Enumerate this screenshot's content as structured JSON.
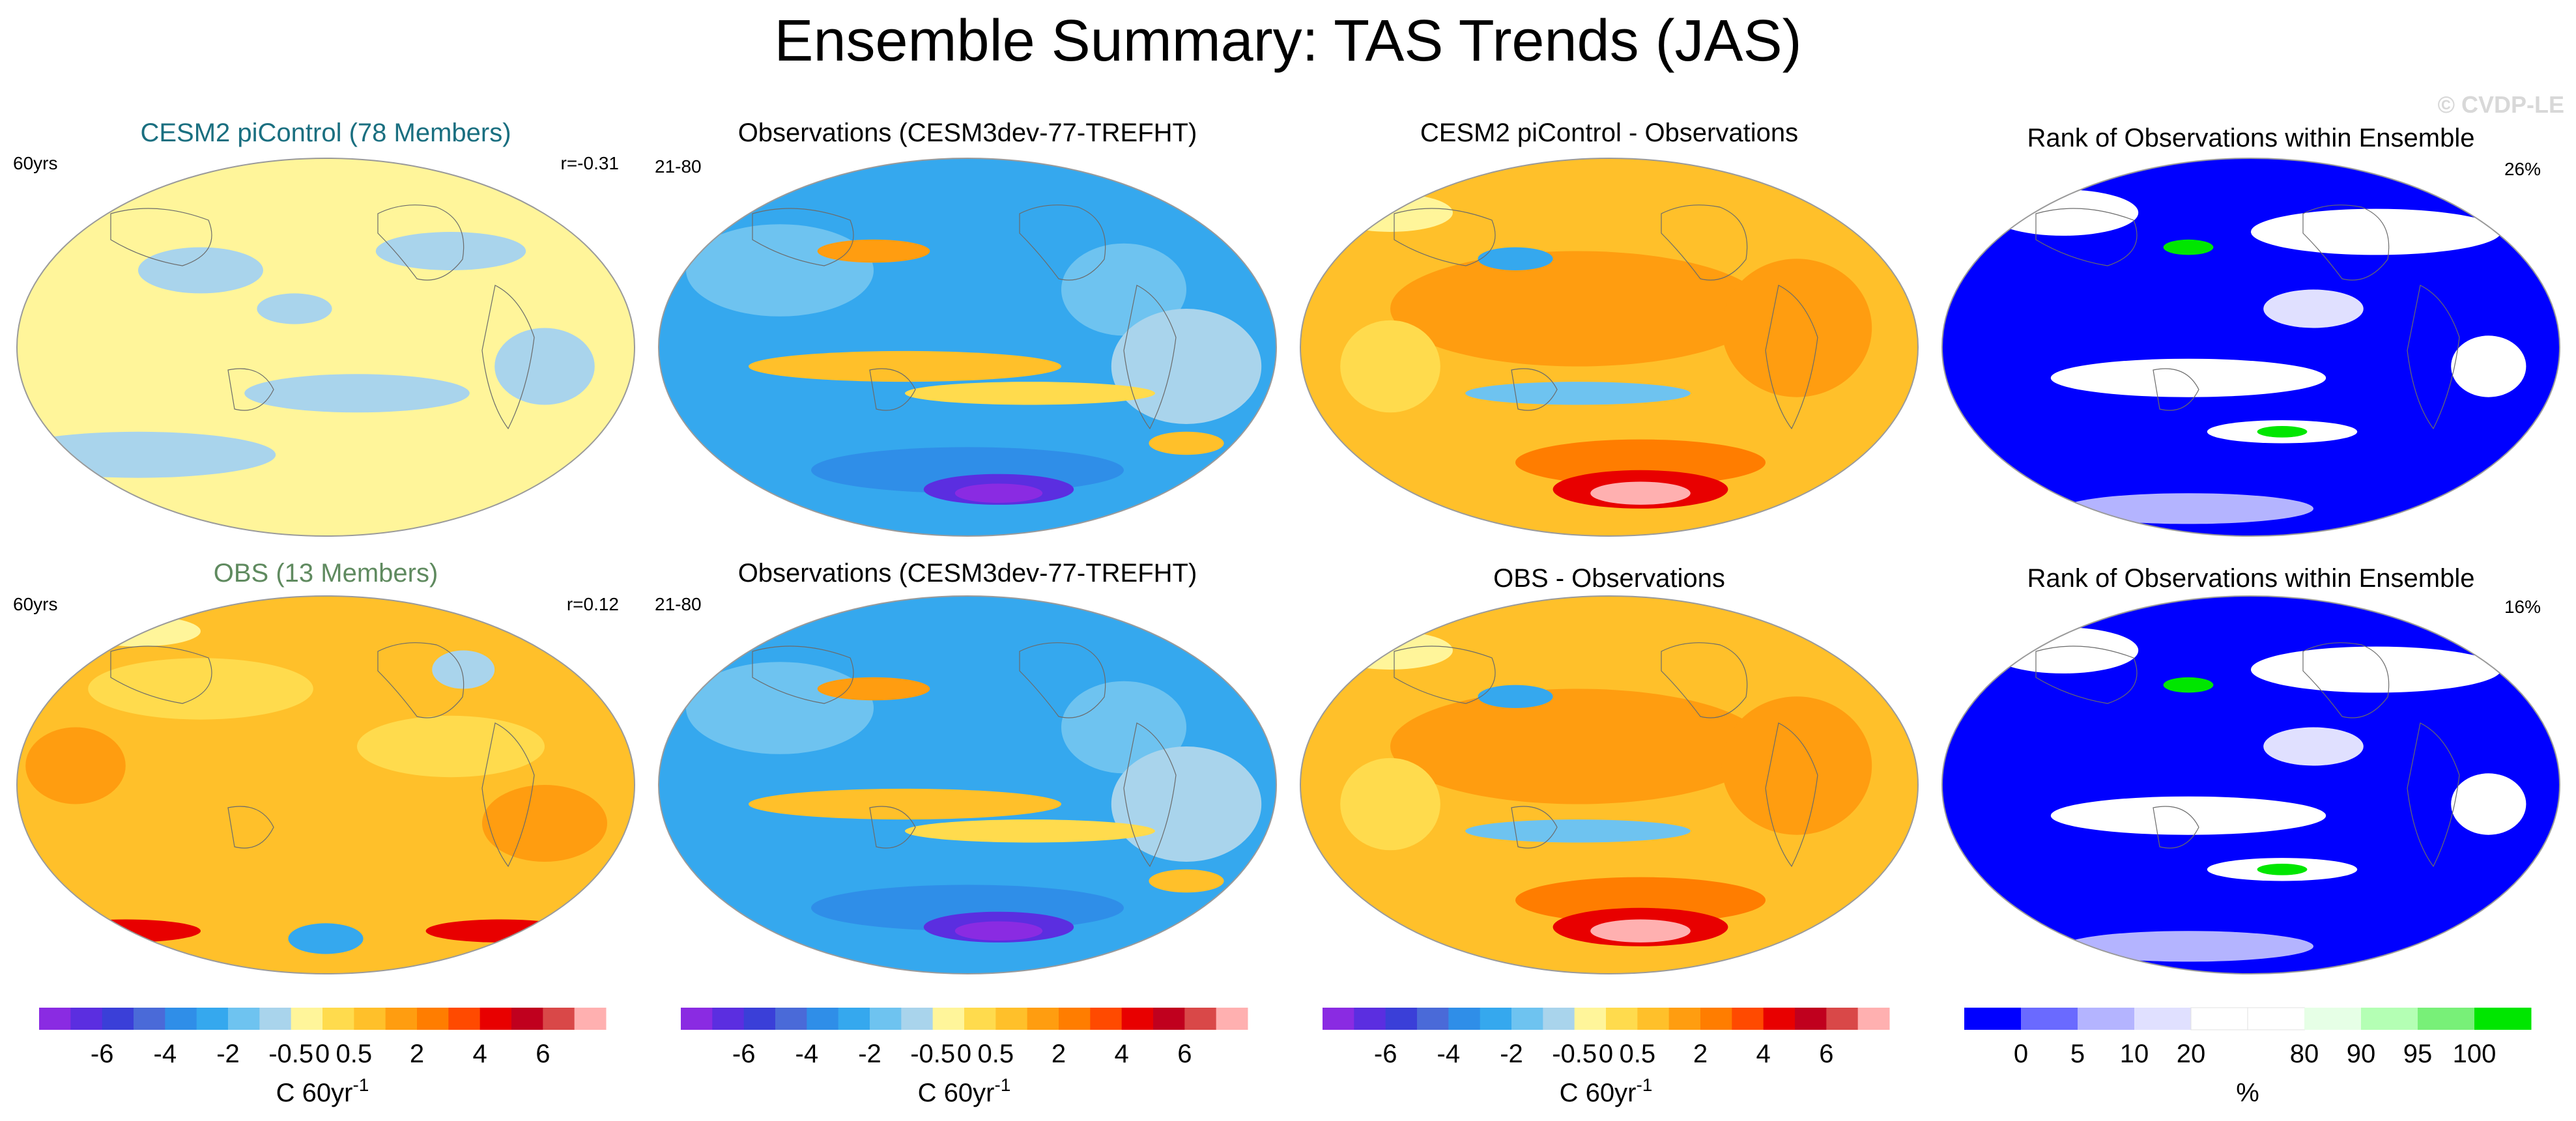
{
  "title": "Ensemble Summary: TAS Trends (JAS)",
  "watermark": "© CVDP-LE",
  "panels": [
    {
      "id": "r0c0",
      "title": "CESM2 piControl (78 Members)",
      "title_color": "#1a6f80",
      "left_label": "60yrs",
      "right_label": "r=-0.31",
      "theme": "piControl"
    },
    {
      "id": "r0c1",
      "title": "Observations (CESM3dev-77-TREFHT)",
      "title_color": "#000000",
      "left_label": "21-80",
      "right_label": "",
      "theme": "obs"
    },
    {
      "id": "r0c2",
      "title": "CESM2 piControl - Observations",
      "title_color": "#000000",
      "left_label": "",
      "right_label": "",
      "theme": "diff"
    },
    {
      "id": "r0c3",
      "title": "Rank of Observations within Ensemble",
      "title_color": "#000000",
      "left_label": "",
      "right_label": "26%",
      "theme": "rank"
    },
    {
      "id": "r1c0",
      "title": "OBS (13 Members)",
      "title_color": "#5f8a5f",
      "left_label": "60yrs",
      "right_label": "r=0.12",
      "theme": "obsEns"
    },
    {
      "id": "r1c1",
      "title": "Observations (CESM3dev-77-TREFHT)",
      "title_color": "#000000",
      "left_label": "21-80",
      "right_label": "",
      "theme": "obs"
    },
    {
      "id": "r1c2",
      "title": "OBS - Observations",
      "title_color": "#000000",
      "left_label": "",
      "right_label": "",
      "theme": "diff"
    },
    {
      "id": "r1c3",
      "title": "Rank of Observations within Ensemble",
      "title_color": "#000000",
      "left_label": "",
      "right_label": "16%",
      "theme": "rank"
    }
  ],
  "trend_colorbar": {
    "colors": [
      "#8a2be2",
      "#5b2ee0",
      "#3a3fd8",
      "#4a6ad8",
      "#2f8ee8",
      "#35a8ee",
      "#6ec3f0",
      "#a9d4ec",
      "#fff59a",
      "#ffdb4d",
      "#ffc02a",
      "#ff9d10",
      "#ff7d00",
      "#ff4a00",
      "#e80000",
      "#c0001e",
      "#d94848",
      "#ffb0b0"
    ],
    "tick_labels": [
      "-6",
      "-4",
      "-2",
      "-0.5",
      "0",
      "0.5",
      "2",
      "4",
      "6"
    ],
    "units": "C 60yr",
    "units_sup": "-1"
  },
  "rank_colorbar": {
    "colors": [
      "#0000ff",
      "#6a6aff",
      "#b4b4ff",
      "#e0e0ff",
      "#ffffff",
      "#ffffff",
      "#e6ffe6",
      "#b4ffb4",
      "#78f078",
      "#00e600"
    ],
    "tick_labels": [
      "0",
      "5",
      "10",
      "20",
      "80",
      "90",
      "95",
      "100"
    ],
    "units": "%"
  },
  "chart_data": [
    {
      "type": "heatmap",
      "title": "CESM2 piControl (78 Members)",
      "colorbar_units": "C 60yr-1",
      "annotations": [
        "60yrs",
        "r=-0.31"
      ]
    },
    {
      "type": "heatmap",
      "title": "Observations (CESM3dev-77-TREFHT)",
      "colorbar_units": "C 60yr-1",
      "annotations": [
        "21-80"
      ]
    },
    {
      "type": "heatmap",
      "title": "CESM2 piControl - Observations",
      "colorbar_units": "C 60yr-1",
      "annotations": []
    },
    {
      "type": "heatmap",
      "title": "Rank of Observations within Ensemble",
      "colorbar_units": "%",
      "annotations": [
        "26%"
      ]
    },
    {
      "type": "heatmap",
      "title": "OBS (13 Members)",
      "colorbar_units": "C 60yr-1",
      "annotations": [
        "60yrs",
        "r=0.12"
      ]
    },
    {
      "type": "heatmap",
      "title": "Observations (CESM3dev-77-TREFHT)",
      "colorbar_units": "C 60yr-1",
      "annotations": [
        "21-80"
      ]
    },
    {
      "type": "heatmap",
      "title": "OBS - Observations",
      "colorbar_units": "C 60yr-1",
      "annotations": []
    },
    {
      "type": "heatmap",
      "title": "Rank of Observations within Ensemble",
      "colorbar_units": "%",
      "annotations": [
        "16%"
      ]
    }
  ]
}
